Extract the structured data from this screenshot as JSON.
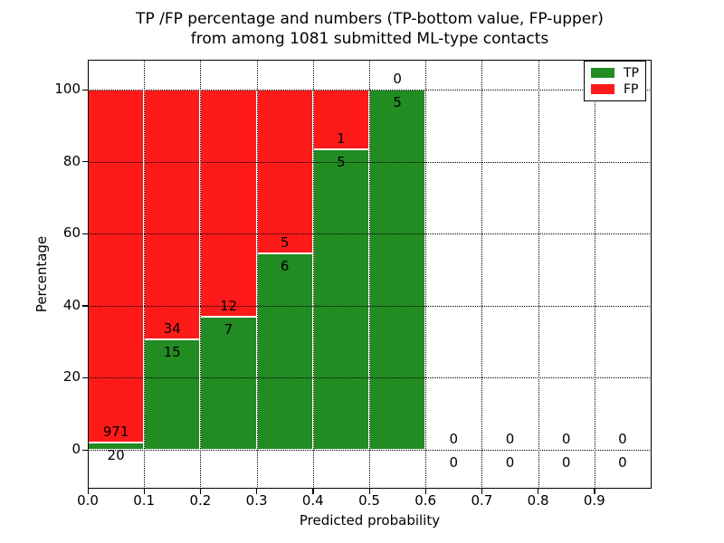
{
  "title": {
    "line1": "TP /FP percentage and numbers (TP-bottom value, FP-upper)",
    "line2": "from among 1081 submitted ML-type contacts"
  },
  "axes": {
    "x_label": "Predicted probability",
    "y_label": "Percentage"
  },
  "legend": {
    "items": [
      {
        "label": "TP",
        "color": "#228b22"
      },
      {
        "label": "FP",
        "color": "#ff1a1a"
      }
    ]
  },
  "chart_data": {
    "type": "bar",
    "subtype": "stacked-normalized-percent",
    "title": "TP /FP percentage and numbers (TP-bottom value, FP-upper) from among 1081 submitted ML-type contacts",
    "xlabel": "Predicted probability",
    "ylabel": "Percentage",
    "x_tick_labels": [
      "0.0",
      "0.1",
      "0.2",
      "0.3",
      "0.4",
      "0.5",
      "0.6",
      "0.7",
      "0.8",
      "0.9"
    ],
    "y_ticks": [
      0,
      20,
      40,
      60,
      80,
      100
    ],
    "xlim": [
      0.0,
      1.0
    ],
    "ylim": [
      -10.5,
      108.5
    ],
    "grid": {
      "style": "dotted",
      "color": "#000000"
    },
    "bin_width": 0.1,
    "bins": [
      {
        "range": [
          0.0,
          0.1
        ],
        "tp": 20,
        "fp": 971
      },
      {
        "range": [
          0.1,
          0.2
        ],
        "tp": 15,
        "fp": 34
      },
      {
        "range": [
          0.2,
          0.3
        ],
        "tp": 7,
        "fp": 12
      },
      {
        "range": [
          0.3,
          0.4
        ],
        "tp": 6,
        "fp": 5
      },
      {
        "range": [
          0.4,
          0.5
        ],
        "tp": 5,
        "fp": 1
      },
      {
        "range": [
          0.5,
          0.6
        ],
        "tp": 5,
        "fp": 0
      },
      {
        "range": [
          0.6,
          0.7
        ],
        "tp": 0,
        "fp": 0
      },
      {
        "range": [
          0.7,
          0.8
        ],
        "tp": 0,
        "fp": 0
      },
      {
        "range": [
          0.8,
          0.9
        ],
        "tp": 0,
        "fp": 0
      },
      {
        "range": [
          0.9,
          1.0
        ],
        "tp": 0,
        "fp": 0
      }
    ],
    "series": [
      {
        "name": "TP",
        "color": "#228b22",
        "counts": [
          20,
          15,
          7,
          6,
          5,
          5,
          0,
          0,
          0,
          0
        ]
      },
      {
        "name": "FP",
        "color": "#ff1a1a",
        "counts": [
          971,
          34,
          12,
          5,
          1,
          0,
          0,
          0,
          0,
          0
        ]
      }
    ],
    "legend_position": "upper right",
    "total_contacts": 1081
  }
}
